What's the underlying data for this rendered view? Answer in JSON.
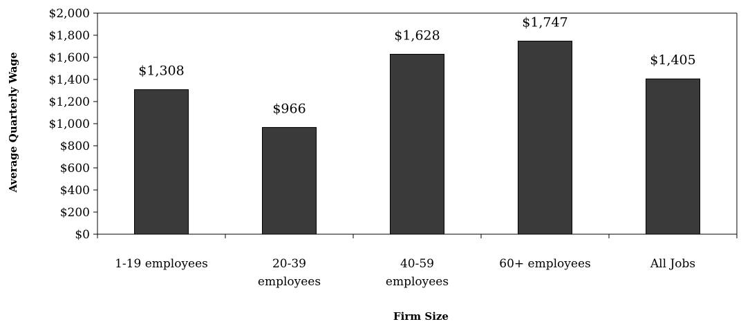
{
  "chart_data": {
    "type": "bar",
    "categories": [
      [
        "1-19 employees"
      ],
      [
        "20-39",
        "employees"
      ],
      [
        "40-59",
        "employees"
      ],
      [
        "60+ employees"
      ],
      [
        "All Jobs"
      ]
    ],
    "values": [
      1308,
      966,
      1628,
      1747,
      1405
    ],
    "data_labels": [
      "$1,308",
      "$966",
      "$1,628",
      "$1,747",
      "$1,405"
    ],
    "xlabel": "Firm Size",
    "ylabel": "Average Quarterly Wage",
    "ylim": [
      0,
      2000
    ],
    "yticks": [
      0,
      200,
      400,
      600,
      800,
      1000,
      1200,
      1400,
      1600,
      1800,
      2000
    ],
    "ytick_labels": [
      "$0",
      "$200",
      "$400",
      "$600",
      "$800",
      "$1,000",
      "$1,200",
      "$1,400",
      "$1,600",
      "$1,800",
      "$2,000"
    ],
    "grid": false,
    "legend": "none",
    "bar_color": "#3a3a3a"
  }
}
